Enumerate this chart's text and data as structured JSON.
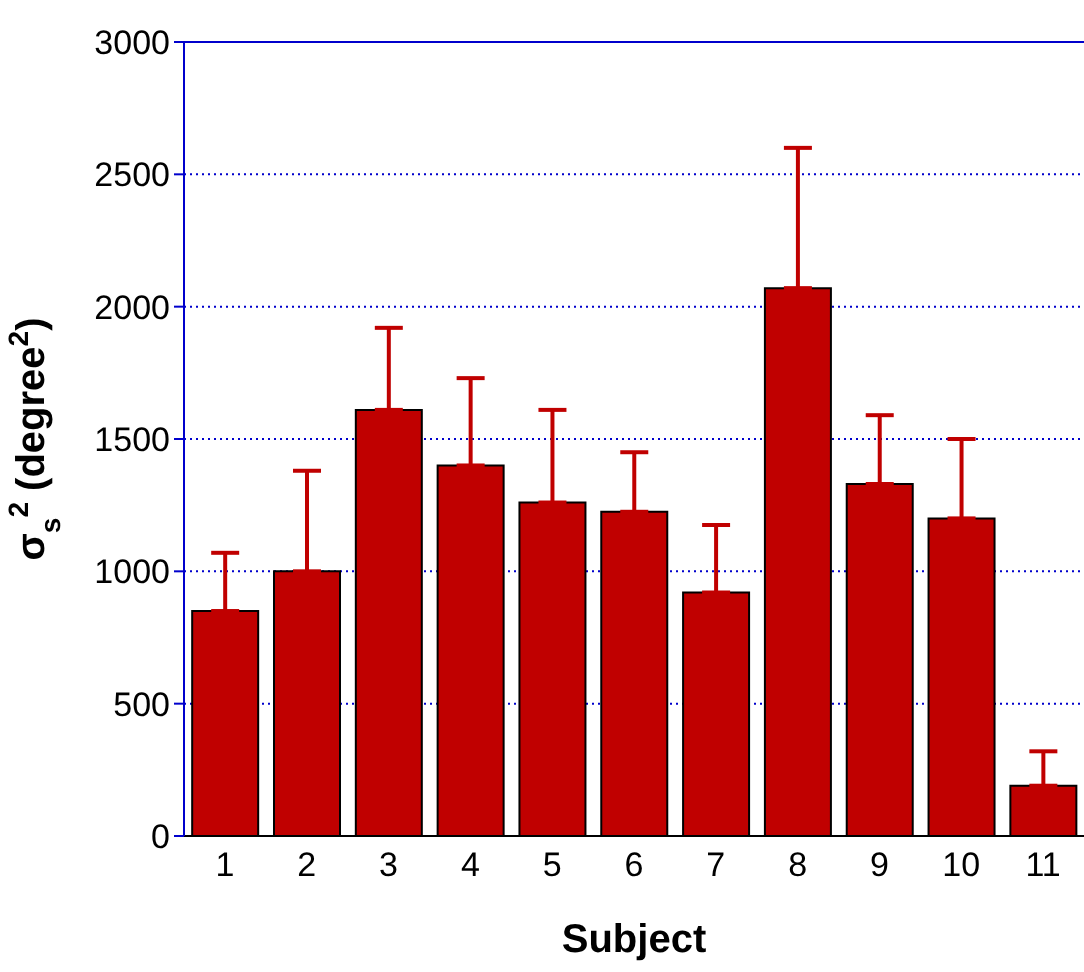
{
  "chart_data": {
    "type": "bar",
    "xlabel": "Subject",
    "ylabel": "σ$_{s}$$^{2}$ (degree$^{2}$)",
    "categories": [
      "1",
      "2",
      "3",
      "4",
      "5",
      "6",
      "7",
      "8",
      "9",
      "10",
      "11"
    ],
    "values": [
      850,
      1000,
      1610,
      1400,
      1260,
      1225,
      920,
      2070,
      1330,
      1200,
      190
    ],
    "errors": [
      [
        850,
        1070
      ],
      [
        1000,
        1380
      ],
      [
        1610,
        1920
      ],
      [
        1400,
        1730
      ],
      [
        1260,
        1610
      ],
      [
        1225,
        1450
      ],
      [
        920,
        1175
      ],
      [
        2070,
        2600
      ],
      [
        1330,
        1590
      ],
      [
        1200,
        1500
      ],
      [
        190,
        320
      ]
    ],
    "color": "#c00000",
    "ylim": [
      0,
      3000
    ],
    "yticks": [
      0,
      500,
      1000,
      1500,
      2000,
      2500,
      3000
    ],
    "grid": "y"
  }
}
